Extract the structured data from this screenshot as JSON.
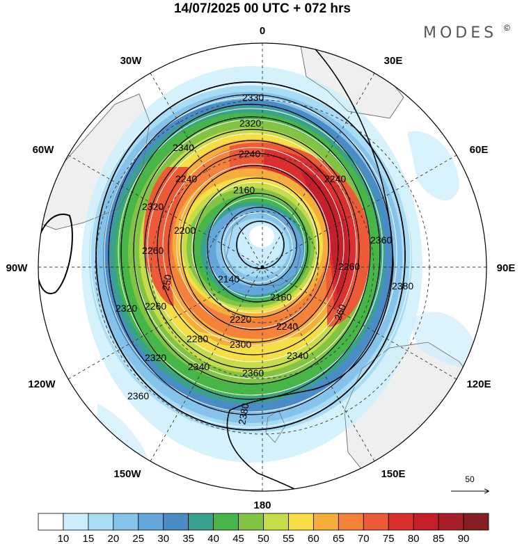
{
  "title": "14/07/2025  00 UTC  + 072 hrs",
  "brand": "MODES",
  "brand_mark": "©",
  "longitude_labels": [
    "0",
    "30E",
    "60E",
    "90E",
    "120E",
    "150E",
    "180",
    "150W",
    "120W",
    "90W",
    "60W",
    "30W"
  ],
  "height_contours": {
    "unit_note": "geopotential height contours",
    "labels": [
      "2330",
      "2320",
      "2340",
      "2240",
      "2240",
      "2160",
      "2320",
      "2200",
      "2260",
      "2240",
      "2360",
      "2260",
      "2380",
      "2140",
      "2160",
      "2320",
      "2260",
      "2220",
      "2240",
      "2280",
      "2300",
      "2340",
      "2320",
      "2340",
      "2360",
      "2360",
      "2380",
      "250",
      "260"
    ]
  },
  "wind_scale": {
    "reference_vector_label": "50"
  },
  "colorbar": {
    "ticks": [
      "10",
      "15",
      "20",
      "25",
      "30",
      "35",
      "40",
      "45",
      "50",
      "55",
      "60",
      "65",
      "70",
      "75",
      "80",
      "85",
      "90"
    ],
    "colors": [
      "#ffffff",
      "#cdeefc",
      "#a8dcf5",
      "#85c3ea",
      "#63a6dc",
      "#4a8cc6",
      "#3aa18c",
      "#47b548",
      "#84c444",
      "#c6dc4a",
      "#f6df46",
      "#f6ad3c",
      "#f4823a",
      "#ec5a36",
      "#dc2f2f",
      "#c61f2c",
      "#a81f2a",
      "#861f22"
    ]
  },
  "style": {
    "land": "#efefef",
    "coast": "#777777",
    "contour": "#000000",
    "graticule": "#333333"
  }
}
